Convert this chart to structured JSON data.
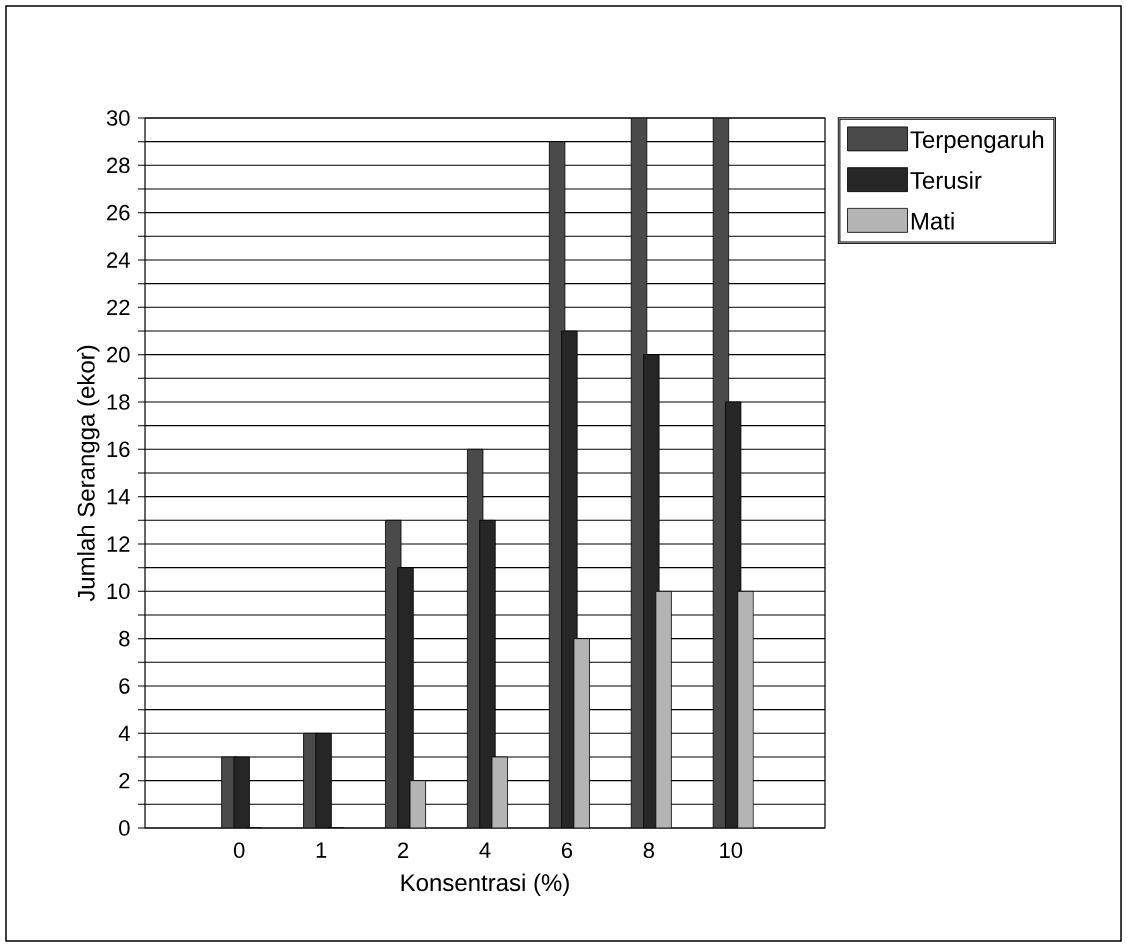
{
  "chart_data": {
    "type": "bar",
    "xlabel": "Konsentrasi (%)",
    "ylabel": "Jumlah Serangga (ekor)",
    "categories": [
      "0",
      "1",
      "2",
      "4",
      "6",
      "8",
      "10"
    ],
    "series": [
      {
        "name": "Terpengaruh",
        "color": "#4a4a4a",
        "values": [
          3,
          4,
          13,
          16,
          29,
          30,
          30
        ]
      },
      {
        "name": "Terusir",
        "color": "#262626",
        "values": [
          3,
          4,
          11,
          13,
          21,
          20,
          18
        ]
      },
      {
        "name": "Mati",
        "color": "#b4b4b4",
        "values": [
          0,
          0,
          2,
          3,
          8,
          10,
          10
        ]
      }
    ],
    "ylim": [
      0,
      30
    ],
    "yticks": [
      0,
      2,
      4,
      6,
      8,
      10,
      12,
      14,
      16,
      18,
      20,
      22,
      24,
      26,
      28,
      30
    ],
    "grid": "y",
    "legend": "right"
  }
}
